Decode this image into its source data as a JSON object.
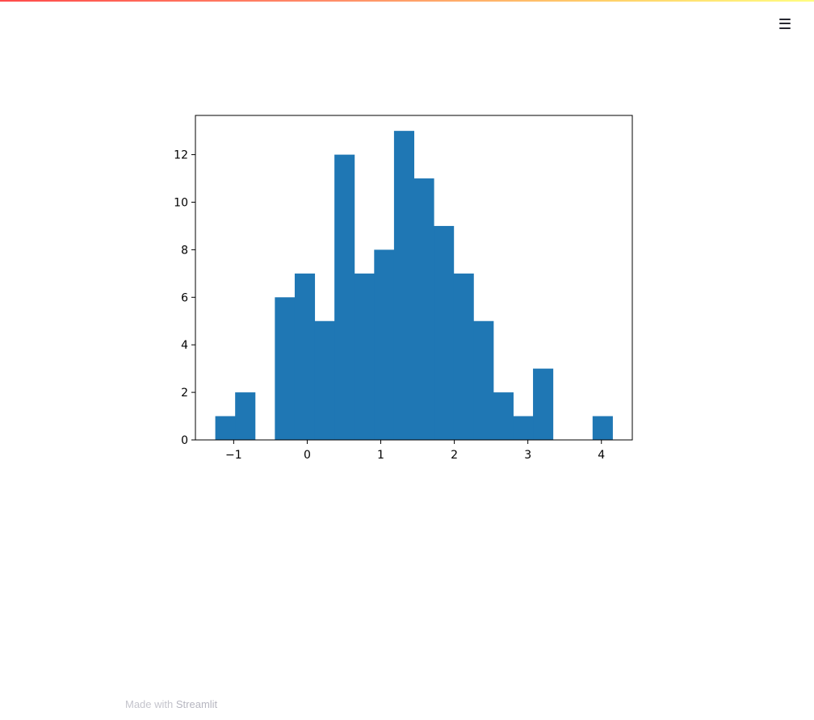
{
  "app": {
    "menu_icon": "hamburger-icon",
    "accent_gradient": [
      "#ff4b4b",
      "#ffd16a",
      "#fffd80"
    ]
  },
  "footer": {
    "prefix": "Made with",
    "brand": "Streamlit"
  },
  "chart_data": {
    "type": "bar",
    "title": "",
    "xlabel": "",
    "ylabel": "",
    "bar_color": "#1f77b4",
    "grid": false,
    "xlim": [
      -1.52,
      4.42
    ],
    "ylim": [
      0,
      13.65
    ],
    "xticks": [
      -1,
      0,
      1,
      2,
      3,
      4
    ],
    "xtick_labels": [
      "−1",
      "0",
      "1",
      "2",
      "3",
      "4"
    ],
    "yticks": [
      0,
      2,
      4,
      6,
      8,
      10,
      12
    ],
    "ytick_labels": [
      "0",
      "2",
      "4",
      "6",
      "8",
      "10",
      "12"
    ],
    "bin_start": -1.25,
    "bin_width": 0.27,
    "counts": [
      1,
      2,
      0,
      6,
      7,
      5,
      12,
      7,
      8,
      13,
      11,
      9,
      7,
      5,
      2,
      1,
      3,
      0,
      0,
      1
    ]
  }
}
